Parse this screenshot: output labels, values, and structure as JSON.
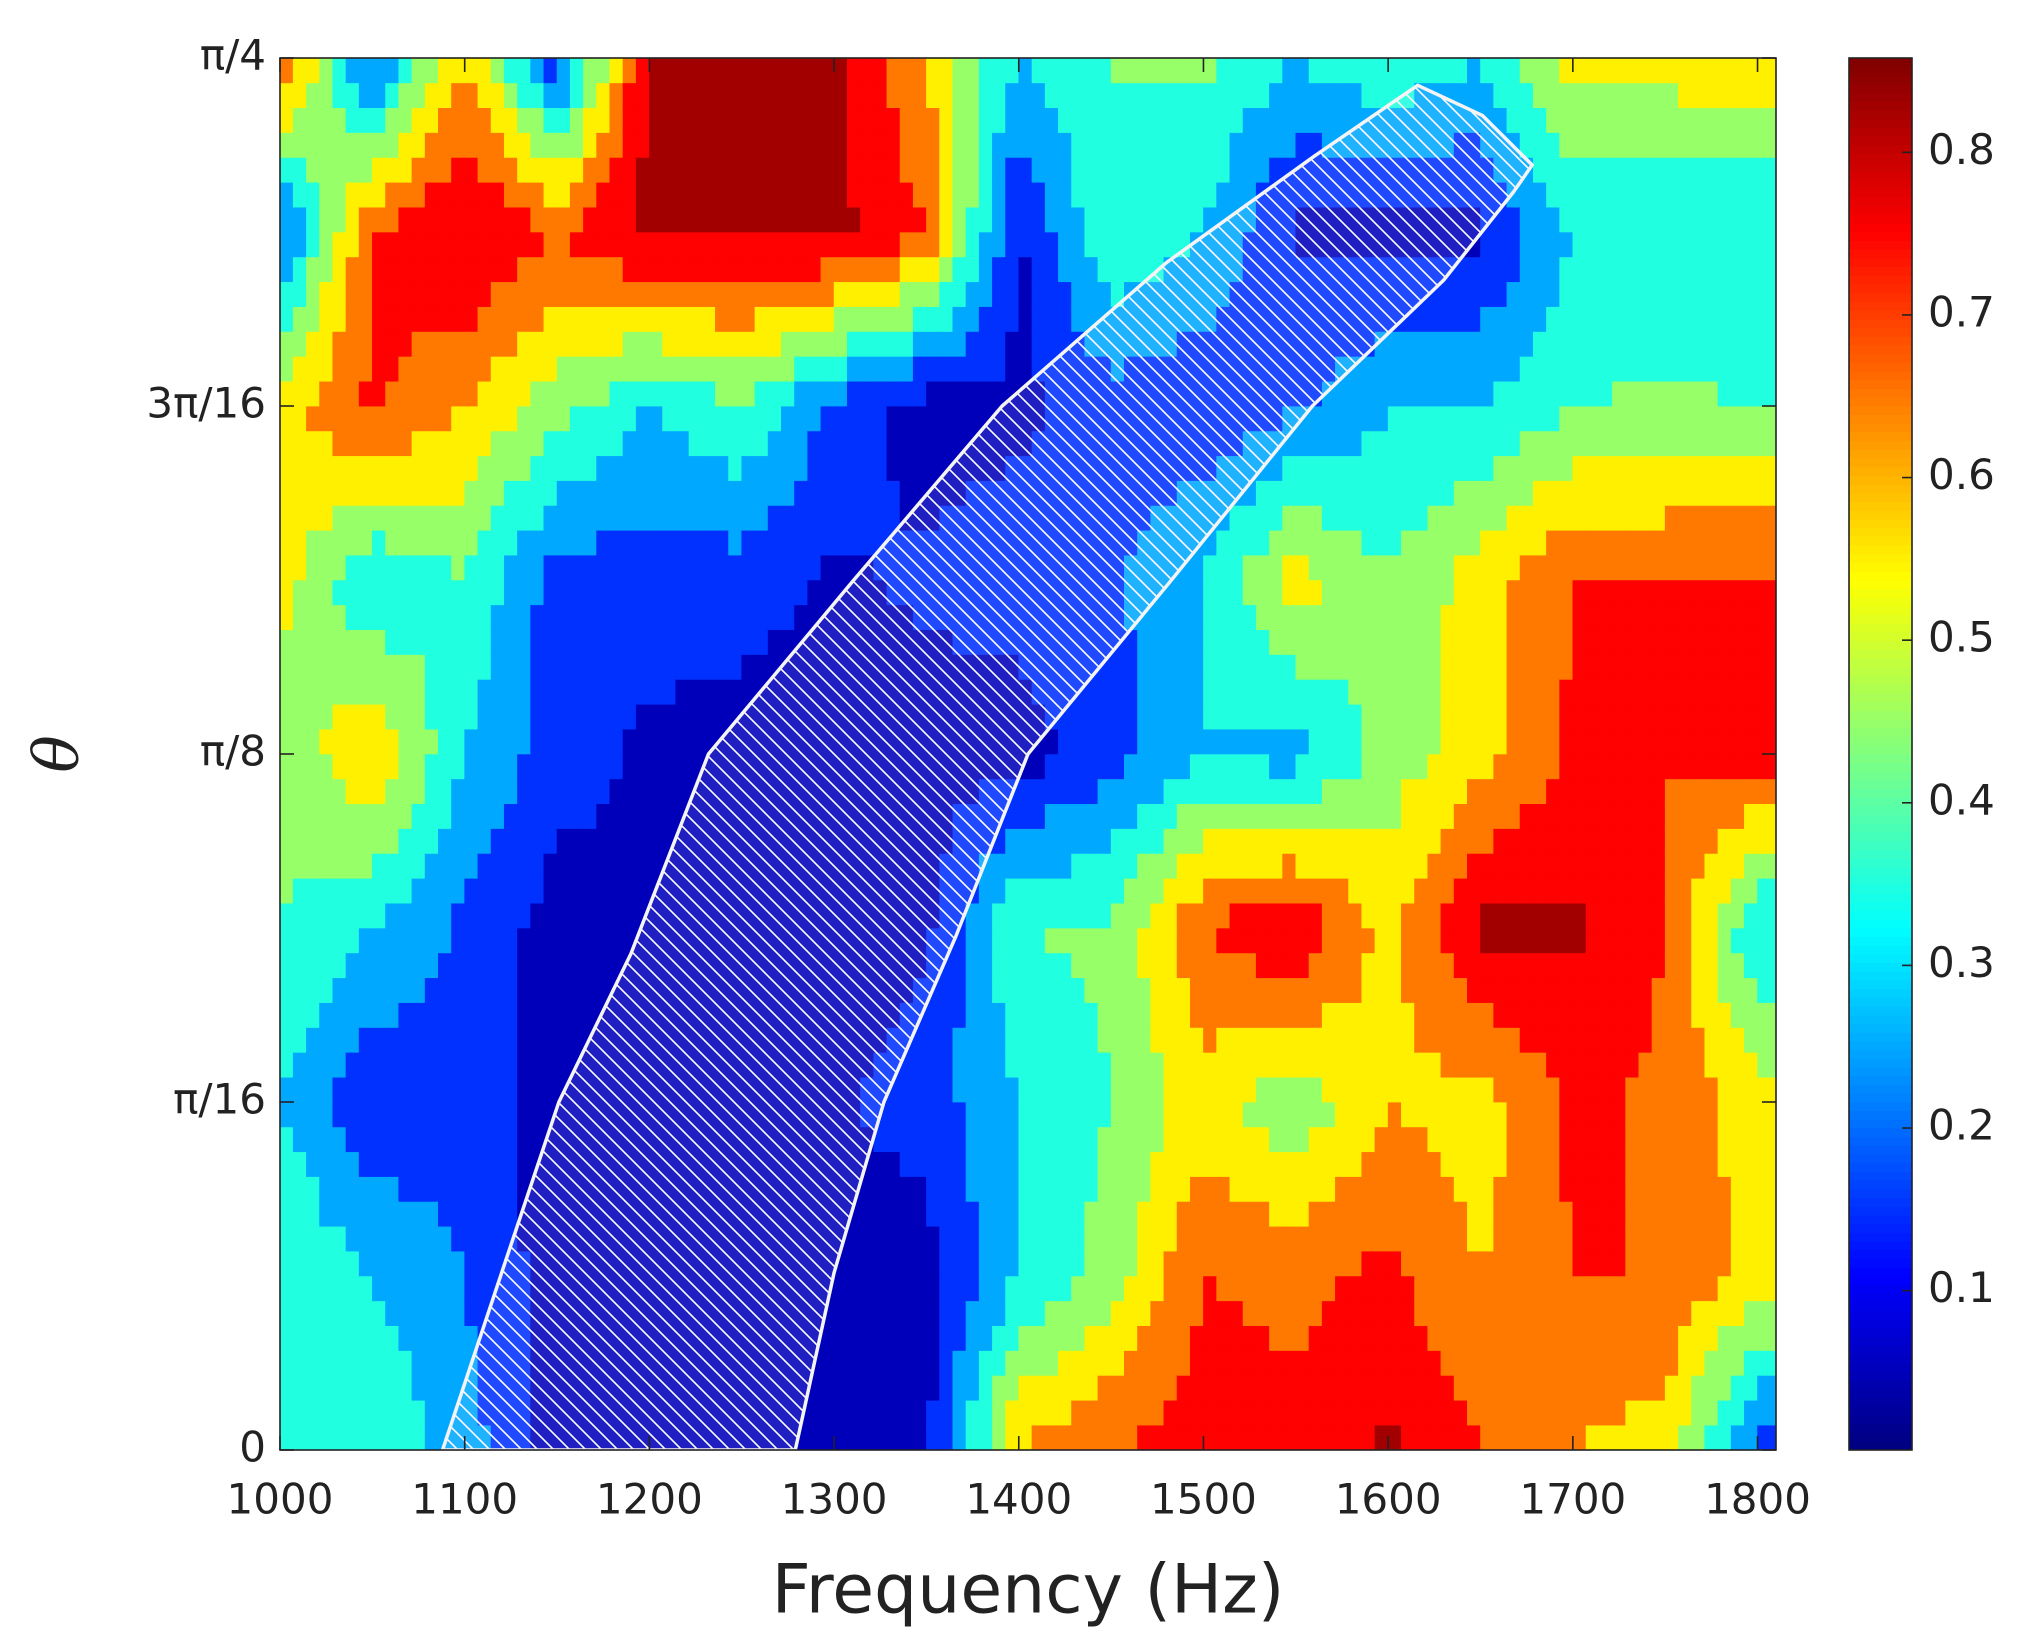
{
  "chart_data": {
    "type": "contour",
    "xlabel": "Frequency (Hz)",
    "ylabel": "θ",
    "colormap": "jet",
    "x": [
      1000,
      1050,
      1100,
      1150,
      1200,
      1250,
      1300,
      1350,
      1400,
      1450,
      1500,
      1550,
      1600,
      1650,
      1700,
      1750,
      1800
    ],
    "y": [
      0,
      0.0982,
      0.1963,
      0.2945,
      0.3927,
      0.4909,
      0.589,
      0.6872,
      0.7854
    ],
    "z": [
      [
        0.3,
        0.4,
        0.25,
        0.05,
        0.05,
        0.05,
        0.05,
        0.08,
        0.6,
        0.7,
        0.75,
        0.72,
        0.82,
        0.7,
        0.6,
        0.55,
        0.15
      ],
      [
        0.4,
        0.3,
        0.2,
        0.05,
        0.05,
        0.05,
        0.05,
        0.05,
        0.3,
        0.45,
        0.7,
        0.68,
        0.72,
        0.6,
        0.7,
        0.7,
        0.55
      ],
      [
        0.3,
        0.12,
        0.15,
        0.05,
        0.05,
        0.05,
        0.08,
        0.15,
        0.3,
        0.4,
        0.55,
        0.42,
        0.6,
        0.55,
        0.72,
        0.68,
        0.55
      ],
      [
        0.4,
        0.3,
        0.18,
        0.05,
        0.08,
        0.05,
        0.05,
        0.08,
        0.4,
        0.42,
        0.7,
        0.8,
        0.55,
        0.83,
        0.82,
        0.7,
        0.3
      ],
      [
        0.42,
        0.6,
        0.3,
        0.15,
        0.08,
        0.05,
        0.05,
        0.05,
        0.05,
        0.15,
        0.3,
        0.25,
        0.45,
        0.55,
        0.72,
        0.7,
        0.75
      ],
      [
        0.55,
        0.3,
        0.4,
        0.15,
        0.15,
        0.15,
        0.08,
        0.12,
        0.15,
        0.18,
        0.3,
        0.55,
        0.4,
        0.55,
        0.7,
        0.7,
        0.72
      ],
      [
        0.55,
        0.72,
        0.6,
        0.45,
        0.3,
        0.4,
        0.18,
        0.05,
        0.08,
        0.15,
        0.12,
        0.18,
        0.3,
        0.3,
        0.4,
        0.42,
        0.4
      ],
      [
        0.15,
        0.7,
        0.82,
        0.7,
        0.83,
        0.83,
        0.83,
        0.7,
        0.08,
        0.4,
        0.3,
        0.08,
        0.05,
        0.08,
        0.3,
        0.3,
        0.3
      ],
      [
        0.72,
        0.15,
        0.6,
        0.12,
        0.83,
        0.83,
        0.83,
        0.6,
        0.3,
        0.4,
        0.42,
        0.3,
        0.4,
        0.3,
        0.55,
        0.55,
        0.58
      ]
    ],
    "xlim": [
      1000,
      1810
    ],
    "ylim": [
      0,
      0.7854
    ],
    "xticks": [
      1000,
      1100,
      1200,
      1300,
      1400,
      1500,
      1600,
      1700,
      1800
    ],
    "yticks": [
      0,
      {
        "value": 0.19635,
        "label": "π/16"
      },
      {
        "value": 0.3927,
        "label": "π/8"
      },
      {
        "value": 0.58905,
        "label": "3π/16"
      },
      {
        "value": 0.7854,
        "label": "π/4"
      }
    ],
    "levels": [
      0.1,
      0.2,
      0.3,
      0.4,
      0.5,
      0.6,
      0.7,
      0.8
    ],
    "clim": [
      0.002,
      0.858
    ],
    "cticks": [
      0.1,
      0.2,
      0.3,
      0.4,
      0.5,
      0.6,
      0.7,
      0.8
    ],
    "highlight": {
      "left_x": [
        1088,
        1120,
        1151,
        1190,
        1232,
        1310,
        1391,
        1480,
        1560,
        1616
      ],
      "left_theta": [
        0,
        0.1,
        0.19635,
        0.28,
        0.3927,
        0.49,
        0.58905,
        0.67,
        0.73,
        0.77
      ],
      "right_x": [
        1279,
        1300,
        1327,
        1366,
        1405,
        1482,
        1559,
        1630,
        1668,
        1678,
        1651
      ],
      "right_theta": [
        0,
        0.1,
        0.19635,
        0.29,
        0.3927,
        0.49,
        0.58905,
        0.66,
        0.71,
        0.725,
        0.753
      ]
    }
  }
}
